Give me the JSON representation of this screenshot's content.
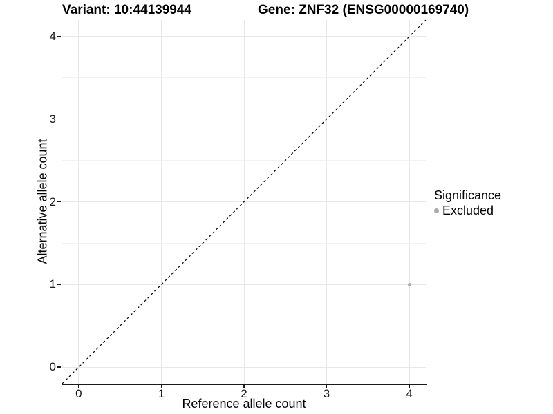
{
  "chart_data": {
    "type": "scatter",
    "title_left": "Variant: 10:44139944",
    "title_right": "Gene: ZNF32 (ENSG00000169740)",
    "xlabel": "Reference allele count",
    "ylabel": "Alternative allele count",
    "xlim": [
      -0.2,
      4.2
    ],
    "ylim": [
      -0.2,
      4.2
    ],
    "x_ticks": [
      0,
      1,
      2,
      3,
      4
    ],
    "y_ticks": [
      0,
      1,
      2,
      3,
      4
    ],
    "x_minor_ticks": [
      0.5,
      1.5,
      2.5,
      3.5
    ],
    "y_minor_ticks": [
      0.5,
      1.5,
      2.5,
      3.5
    ],
    "grid": {
      "shown": true,
      "major_color": "#e8e8e8",
      "minor_color": "#f2f2f2",
      "background": "#ffffff"
    },
    "axis_color": "#1a1a1a",
    "series": [
      {
        "name": "Excluded",
        "color": "#ababab",
        "marker": "circle",
        "marker_size_px": 5,
        "points": [
          [
            4,
            1
          ]
        ]
      }
    ],
    "reference_line": {
      "type": "identity",
      "style": "dashed",
      "color": "#000000",
      "from": [
        -0.2,
        -0.2
      ],
      "to": [
        4.2,
        4.2
      ]
    },
    "legend": {
      "title": "Significance",
      "position": "right",
      "items": [
        {
          "label": "Excluded",
          "color": "#ababab",
          "marker": "circle"
        }
      ]
    }
  }
}
